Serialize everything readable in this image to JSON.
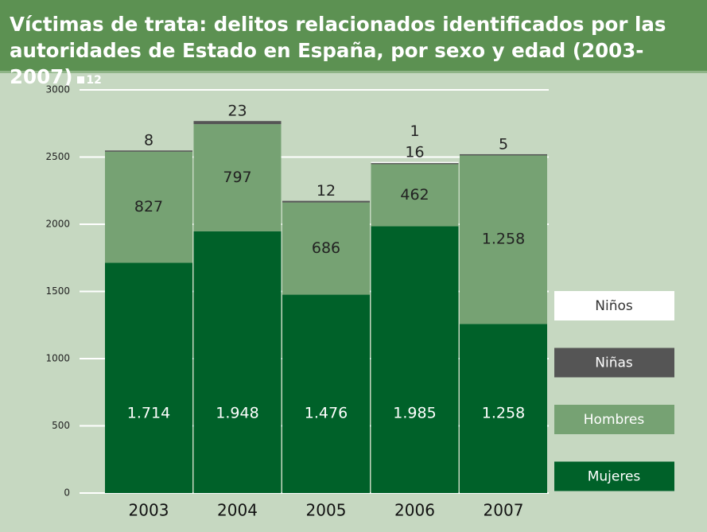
{
  "chart_data": {
    "type": "stacked_bar",
    "title": "Víctimas de trata: delitos relacionados identificados por las autoridades de Estado en España, por sexo y edad (2003-2007)",
    "subtitle": "12",
    "categories": [
      "2003",
      "2004",
      "2005",
      "2006",
      "2007"
    ],
    "series": [
      {
        "name": "Mujeres",
        "color": "#006129",
        "values": [
          1714,
          1948,
          1476,
          1985,
          1258
        ],
        "value_labels": [
          "1.714",
          "1.948",
          "1.476",
          "1.985",
          "1.258"
        ]
      },
      {
        "name": "Hombres",
        "color": "#76a273",
        "values": [
          827,
          797,
          686,
          462,
          1258
        ],
        "value_labels": [
          "827",
          "797",
          "686",
          "462",
          "1.258"
        ]
      },
      {
        "name": "Niñas",
        "color": "#555555",
        "values": [
          8,
          23,
          12,
          16,
          5
        ]
      },
      {
        "name": "Niños",
        "color": "#ffffff",
        "values": [
          null,
          null,
          null,
          1,
          null
        ]
      }
    ],
    "ylim": [
      0,
      3000
    ],
    "yticks": [
      0,
      500,
      1000,
      1500,
      2000,
      2500,
      3000
    ],
    "grid": true
  }
}
